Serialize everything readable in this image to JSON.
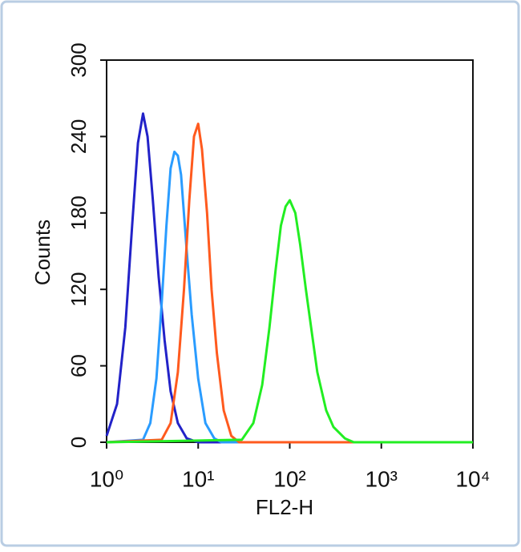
{
  "chart_data": {
    "type": "line",
    "x_label": "FL2-H",
    "y_label": "Counts",
    "xscale": "log",
    "xlim": [
      1,
      10000
    ],
    "xticks": [
      {
        "value": 1,
        "label": "10⁰"
      },
      {
        "value": 10,
        "label": "10¹"
      },
      {
        "value": 100,
        "label": "10²"
      },
      {
        "value": 1000,
        "label": "10³"
      },
      {
        "value": 10000,
        "label": "10⁴"
      }
    ],
    "ylim": [
      0,
      300
    ],
    "yticks": [
      0,
      60,
      120,
      180,
      240,
      300
    ],
    "series": [
      {
        "color": "#2222c8",
        "x": [
          1,
          1.3,
          1.6,
          1.9,
          2.2,
          2.5,
          2.8,
          3.2,
          3.7,
          4.3,
          5,
          6,
          7.5,
          10,
          10000
        ],
        "values": [
          5,
          30,
          90,
          170,
          235,
          258,
          240,
          190,
          130,
          80,
          40,
          15,
          3,
          0,
          0
        ]
      },
      {
        "color": "#2a9cff",
        "x": [
          1,
          2.5,
          3,
          3.5,
          4,
          4.5,
          5,
          5.5,
          6,
          6.5,
          7.5,
          8.5,
          10,
          12,
          15,
          18,
          10000
        ],
        "values": [
          0,
          2,
          15,
          50,
          110,
          170,
          215,
          228,
          225,
          210,
          150,
          100,
          50,
          15,
          3,
          0,
          0
        ]
      },
      {
        "color": "#ff5a1e",
        "x": [
          1,
          4,
          5,
          6,
          7,
          8,
          9,
          10,
          11,
          12.5,
          14,
          16,
          19,
          23,
          28,
          10000
        ],
        "values": [
          0,
          2,
          15,
          55,
          120,
          190,
          240,
          250,
          230,
          180,
          120,
          70,
          25,
          5,
          0,
          0
        ]
      },
      {
        "color": "#22ee22",
        "x": [
          1,
          30,
          40,
          50,
          60,
          70,
          80,
          90,
          100,
          115,
          130,
          150,
          175,
          200,
          250,
          300,
          400,
          500,
          10000
        ],
        "values": [
          0,
          2,
          15,
          45,
          90,
          135,
          170,
          185,
          190,
          180,
          155,
          120,
          85,
          55,
          25,
          12,
          3,
          0,
          0
        ]
      }
    ]
  }
}
